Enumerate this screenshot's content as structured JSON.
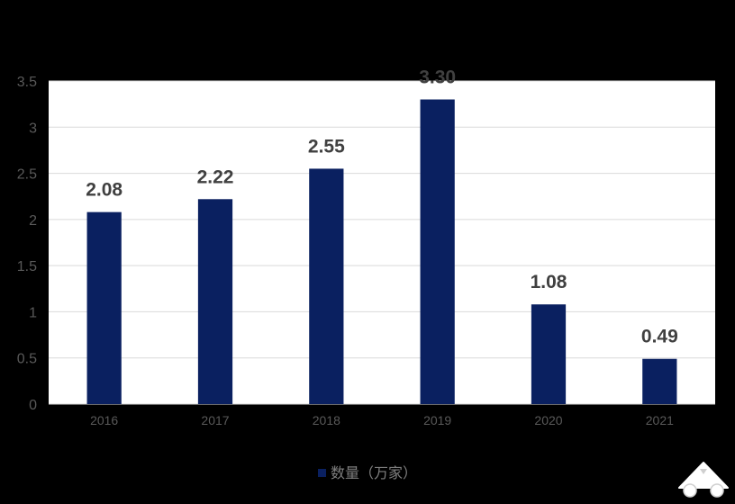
{
  "chart_data": {
    "type": "bar",
    "categories": [
      "2016",
      "2017",
      "2018",
      "2019",
      "2020",
      "2021"
    ],
    "series": [
      {
        "name": "数量（万家）",
        "values": [
          2.08,
          2.22,
          2.55,
          3.3,
          1.08,
          0.49
        ]
      }
    ],
    "data_labels": [
      "2.08",
      "2.22",
      "2.55",
      "3.30",
      "1.08",
      "0.49"
    ],
    "y_ticks": [
      "0",
      "0.5",
      "1",
      "1.5",
      "2",
      "2.5",
      "3",
      "3.5"
    ],
    "ylim": [
      0,
      3.5
    ],
    "grid": true,
    "legend_position": "bottom",
    "title": "",
    "xlabel": "",
    "ylabel": "",
    "colors": {
      "bar": "#0a2060",
      "plot_background": "#ffffff",
      "page_background": "#000000",
      "gridline": "#d9d9d9",
      "tick_label": "#595959",
      "data_label": "#404040"
    }
  },
  "legend": {
    "label": "数量（万家）"
  }
}
